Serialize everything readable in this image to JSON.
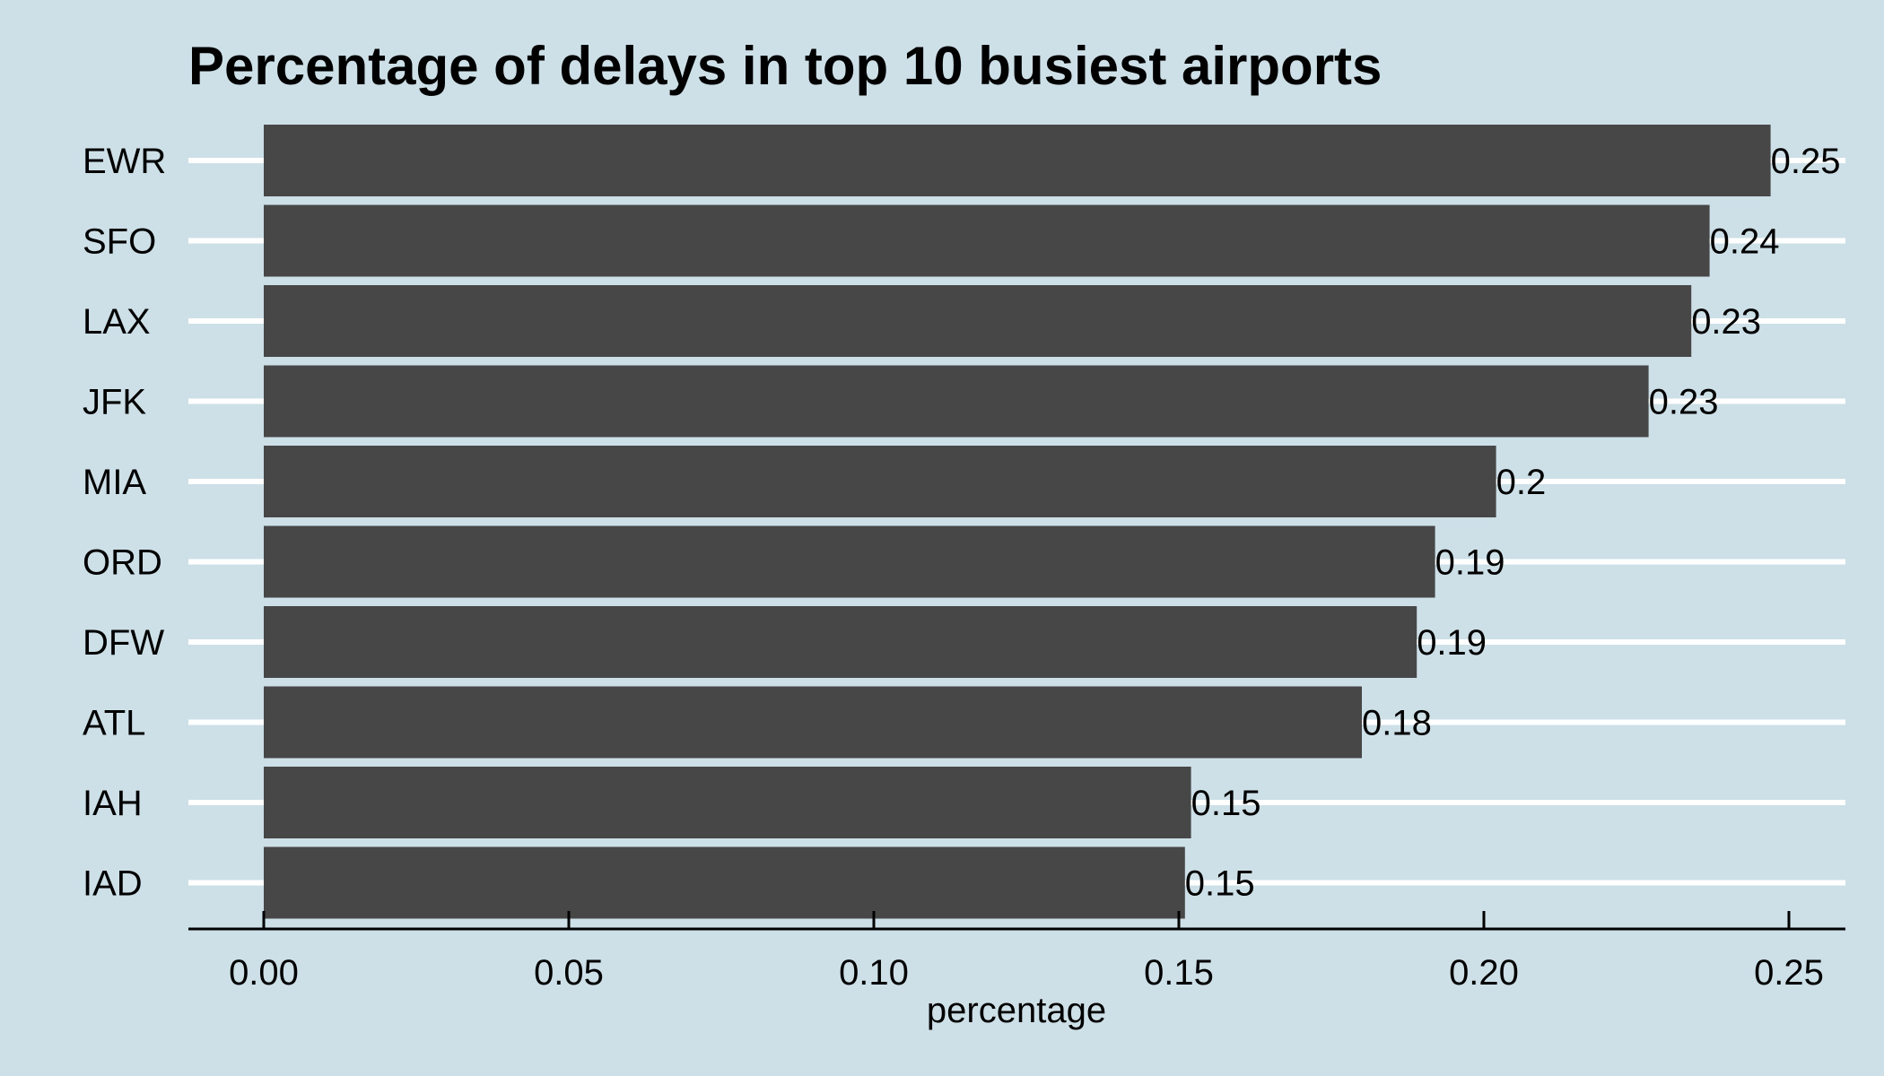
{
  "chart_data": {
    "type": "bar",
    "orientation": "horizontal",
    "title": "Percentage of delays in top 10 busiest airports",
    "xlabel": "percentage",
    "ylabel": "",
    "categories": [
      "EWR",
      "SFO",
      "LAX",
      "JFK",
      "MIA",
      "ORD",
      "DFW",
      "ATL",
      "IAH",
      "IAD"
    ],
    "values": [
      0.247,
      0.237,
      0.234,
      0.227,
      0.202,
      0.192,
      0.189,
      0.18,
      0.152,
      0.151
    ],
    "data_labels": [
      "0.25",
      "0.24",
      "0.23",
      "0.23",
      "0.2",
      "0.19",
      "0.19",
      "0.18",
      "0.15",
      "0.15"
    ],
    "xlim": [
      0,
      0.25
    ],
    "x_ticks": [
      0,
      0.05,
      0.1,
      0.15,
      0.2,
      0.25
    ],
    "x_tick_labels": [
      "0.00",
      "0.05",
      "0.10",
      "0.15",
      "0.20",
      "0.25"
    ],
    "grid": "horizontal",
    "legend": "none",
    "colors": {
      "background": "#cddfe7",
      "bar": "#474747",
      "gridline": "#ffffff",
      "axis": "#000000",
      "text": "#000000"
    }
  }
}
